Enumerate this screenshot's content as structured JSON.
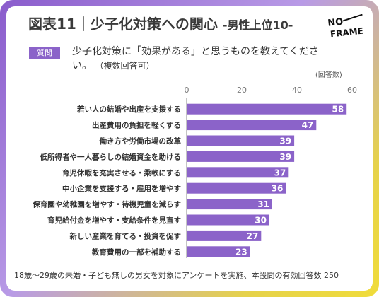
{
  "header": {
    "title": "図表11｜少子化対策への関心",
    "subtitle": "-男性上位10-",
    "logo_text": "NO-FRAME"
  },
  "question": {
    "badge": "質問",
    "text": "少子化対策に「効果がある」と思うものを教えてください。",
    "note": "（複数回答可）"
  },
  "unit_label": "(回答数)",
  "footer": "18歳～29歳の未婚・子ども無しの男女を対象にアンケートを実施、本設問の有効回答数 250",
  "colors": {
    "bar": "#8b63c9",
    "accent": "#8b63c9"
  },
  "chart_data": {
    "type": "bar",
    "orientation": "horizontal",
    "categories": [
      "若い人の結婚や出産を支援する",
      "出産費用の負担を軽くする",
      "働き方や労働市場の改革",
      "低所得者や一人暮らしの結婚資金を助ける",
      "育児休暇を充実させる・柔軟にする",
      "中小企業を支援する・雇用を増やす",
      "保育園や幼稚園を増やす・待機児童を減らす",
      "育児給付金を増やす・支給条件を見直す",
      "新しい産業を育てる・投資を促す",
      "教育費用の一部を補助する"
    ],
    "values": [
      58,
      47,
      39,
      39,
      37,
      36,
      31,
      30,
      27,
      23
    ],
    "xlim": [
      0,
      60
    ],
    "xticks": [
      0,
      20,
      40,
      60
    ],
    "grid": false,
    "legend": "none"
  }
}
